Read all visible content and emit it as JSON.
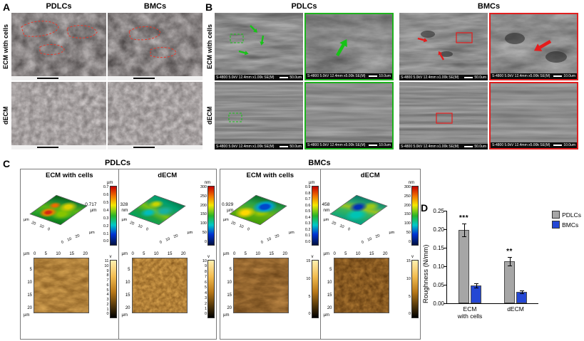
{
  "panel_a": {
    "label": "A",
    "col_headers": [
      "PDLCs",
      "BMCs"
    ],
    "row_headers": [
      "ECM with cells",
      "dECM"
    ]
  },
  "panel_b": {
    "label": "B",
    "col_headers": [
      "PDLCs",
      "BMCs"
    ],
    "row_headers": [
      "ECM with cells",
      "dECM"
    ],
    "main_meta": "S-4800 5.0kV 12.4mm x1.00k SE(M)",
    "inset_meta": "S-4800 5.0kV 12.4mm x5.00k SE(M)",
    "main_scale": "50.0um",
    "inset_scale": "10.0um"
  },
  "panel_c": {
    "label": "C",
    "axis3d": {
      "left": [
        "20",
        "10",
        "0"
      ],
      "right": [
        "0",
        "10",
        "20"
      ],
      "unit": "µm"
    },
    "ruler": {
      "top": [
        "0",
        "5",
        "10",
        "15",
        "20"
      ],
      "left": [
        "5",
        "10",
        "15",
        "20"
      ],
      "unit": "µm"
    },
    "groups": [
      {
        "title": "PDLCs",
        "columns": [
          {
            "header": "ECM with cells",
            "annotation": {
              "value": "0.717",
              "unit": "µm"
            },
            "cbar3d": {
              "unit": "µm",
              "ticks": [
                "0.7",
                "0.6",
                "0.5",
                "0.4",
                "0.3",
                "0.2",
                "0.1",
                "0.0"
              ]
            },
            "cbar2d": {
              "unit": "v",
              "ticks": [
                "11",
                "10",
                "9",
                "8",
                "7",
                "6",
                "5",
                "4",
                "3",
                "2",
                "1",
                "0"
              ]
            }
          },
          {
            "header": "dECM",
            "annotation": {
              "value": "328",
              "unit": "nm"
            },
            "cbar3d": {
              "unit": "nm",
              "ticks": [
                "300",
                "250",
                "200",
                "150",
                "100",
                "50",
                "0"
              ]
            },
            "cbar2d": {
              "unit": "v",
              "ticks": [
                "10",
                "9",
                "8",
                "7",
                "6",
                "5",
                "4",
                "3",
                "2",
                "1",
                "0"
              ]
            }
          }
        ]
      },
      {
        "title": "BMCs",
        "columns": [
          {
            "header": "ECM with cells",
            "annotation": {
              "value": "0.929",
              "unit": "µm"
            },
            "cbar3d": {
              "unit": "µm",
              "ticks": [
                "0.9",
                "0.8",
                "0.7",
                "0.6",
                "0.5",
                "0.4",
                "0.3",
                "0.2",
                "0.1",
                "0.0"
              ]
            },
            "cbar2d": {
              "unit": "v",
              "ticks": [
                "15",
                "10",
                "5",
                "0"
              ]
            }
          },
          {
            "header": "dECM",
            "annotation": {
              "value": "458",
              "unit": "nm"
            },
            "cbar3d": {
              "unit": "nm",
              "ticks": [
                "300",
                "250",
                "200",
                "150",
                "100",
                "50",
                "0"
              ]
            },
            "cbar2d": {
              "unit": "v",
              "ticks": [
                "15",
                "10",
                "5",
                "0"
              ]
            }
          }
        ]
      }
    ]
  },
  "panel_d": {
    "label": "D"
  },
  "chart_data": {
    "type": "bar",
    "categories": [
      "ECM\nwith cells",
      "dECM"
    ],
    "series": [
      {
        "name": "PDLCs",
        "color": "#a6a6a6",
        "values": [
          0.198,
          0.113
        ],
        "errors": [
          0.018,
          0.012
        ]
      },
      {
        "name": "BMCs",
        "color": "#2447d4",
        "values": [
          0.048,
          0.03
        ],
        "errors": [
          0.005,
          0.004
        ]
      }
    ],
    "ylabel": "Roughness (N/mm)",
    "ylim": [
      0,
      0.25
    ],
    "yticks": [
      "0.00",
      "0.05",
      "0.10",
      "0.15",
      "0.20",
      "0.25"
    ],
    "significance": [
      "***",
      "**"
    ],
    "legend_position": "top-right"
  }
}
